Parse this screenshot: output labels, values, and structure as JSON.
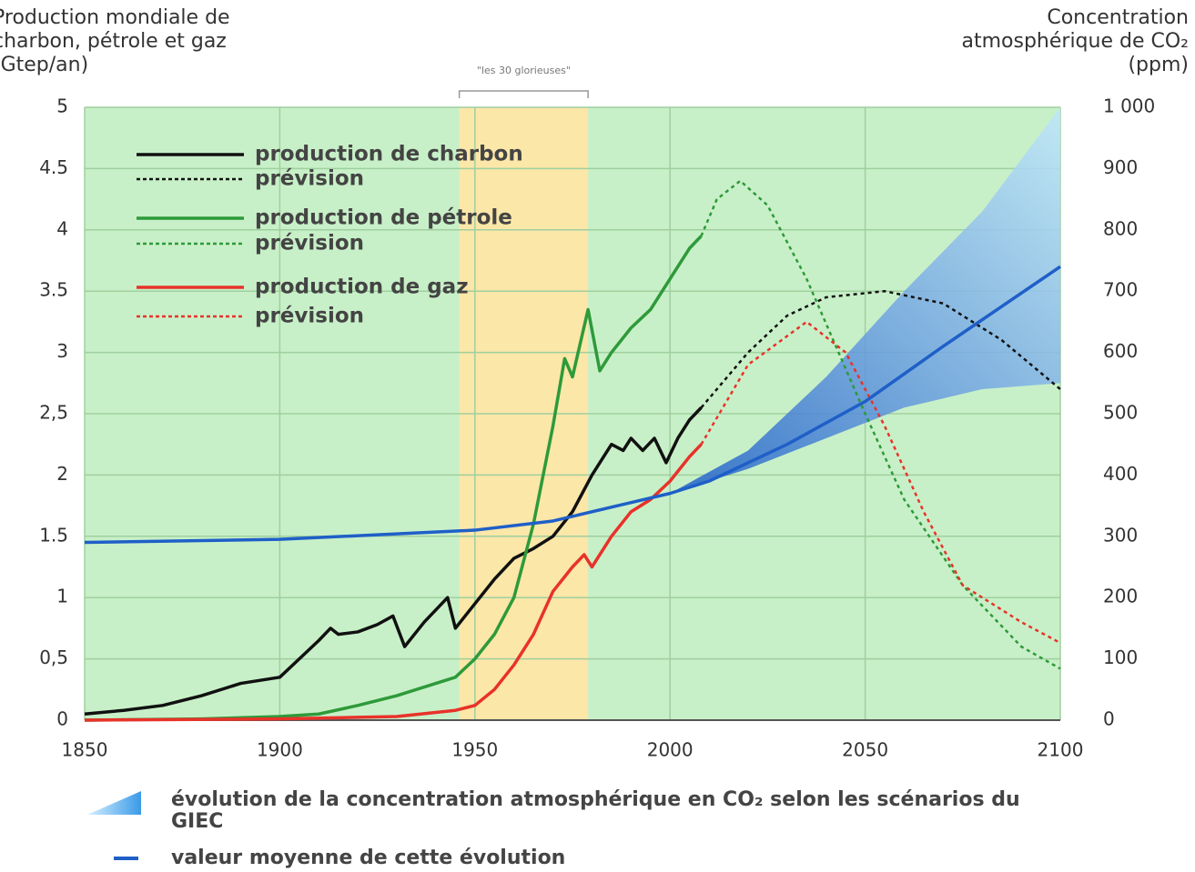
{
  "chart_data": {
    "type": "line",
    "y_label_lines": [
      "Production mondiale de",
      "charbon, pétrole et gaz",
      "(Gtep/an)"
    ],
    "y2_label_lines": [
      "Concentration",
      "atmosphérique de CO₂",
      "(ppm)"
    ],
    "annotation": "\"les 30 glorieuses\"",
    "highlight": [
      1946,
      1979
    ],
    "xlim": [
      1850,
      2100
    ],
    "xticks": [
      1850,
      1900,
      1950,
      2000,
      2050,
      2100
    ],
    "ylim": [
      0,
      5
    ],
    "yticks": [
      0,
      {
        "value": 0.5,
        "label": "0,5"
      },
      1,
      1.5,
      2,
      {
        "value": 2.5,
        "label": "2,5"
      },
      3,
      3.5,
      4,
      4.5,
      5
    ],
    "y2lim": [
      0,
      1000
    ],
    "y2ticks": [
      0,
      100,
      200,
      300,
      400,
      500,
      600,
      700,
      800,
      900,
      {
        "value": 1000,
        "label": "1 000"
      }
    ],
    "grid": true,
    "series": [
      {
        "name": "production de charbon",
        "color": "#111111",
        "dashed": false,
        "x": [
          1850,
          1860,
          1870,
          1880,
          1890,
          1900,
          1905,
          1910,
          1913,
          1915,
          1920,
          1925,
          1929,
          1932,
          1937,
          1940,
          1943,
          1945,
          1950,
          1955,
          1960,
          1965,
          1970,
          1975,
          1980,
          1985,
          1988,
          1990,
          1993,
          1996,
          1999,
          2002,
          2005,
          2008
        ],
        "values": [
          0.05,
          0.08,
          0.12,
          0.2,
          0.3,
          0.35,
          0.5,
          0.65,
          0.75,
          0.7,
          0.72,
          0.78,
          0.85,
          0.6,
          0.8,
          0.9,
          1.0,
          0.75,
          0.95,
          1.15,
          1.32,
          1.4,
          1.5,
          1.7,
          2.0,
          2.25,
          2.2,
          2.3,
          2.2,
          2.3,
          2.1,
          2.3,
          2.45,
          2.55
        ]
      },
      {
        "name": "prévision",
        "color": "#111111",
        "dashed": true,
        "x": [
          2008,
          2020,
          2030,
          2040,
          2055,
          2070,
          2085,
          2100
        ],
        "values": [
          2.55,
          3.0,
          3.3,
          3.45,
          3.5,
          3.4,
          3.1,
          2.7
        ]
      },
      {
        "name": "production de pétrole",
        "color": "#2e9a3a",
        "dashed": false,
        "x": [
          1850,
          1880,
          1900,
          1910,
          1920,
          1930,
          1940,
          1945,
          1950,
          1955,
          1960,
          1965,
          1970,
          1973,
          1975,
          1979,
          1982,
          1985,
          1990,
          1995,
          2000,
          2005,
          2008
        ],
        "values": [
          0,
          0.01,
          0.03,
          0.05,
          0.12,
          0.2,
          0.3,
          0.35,
          0.5,
          0.7,
          1.0,
          1.6,
          2.4,
          2.95,
          2.8,
          3.35,
          2.85,
          3.0,
          3.2,
          3.35,
          3.6,
          3.85,
          3.95
        ]
      },
      {
        "name": "prévision",
        "color": "#2e9a3a",
        "dashed": true,
        "x": [
          2008,
          2012,
          2018,
          2025,
          2035,
          2050,
          2060,
          2075,
          2090,
          2100
        ],
        "values": [
          3.95,
          4.25,
          4.4,
          4.2,
          3.6,
          2.5,
          1.8,
          1.1,
          0.6,
          0.42
        ]
      },
      {
        "name": "production de gaz",
        "color": "#e8322a",
        "dashed": false,
        "x": [
          1850,
          1900,
          1930,
          1945,
          1950,
          1955,
          1960,
          1965,
          1970,
          1975,
          1978,
          1980,
          1985,
          1990,
          1995,
          2000,
          2005,
          2008
        ],
        "values": [
          0,
          0.01,
          0.03,
          0.08,
          0.12,
          0.25,
          0.45,
          0.7,
          1.05,
          1.25,
          1.35,
          1.25,
          1.5,
          1.7,
          1.8,
          1.95,
          2.15,
          2.25
        ]
      },
      {
        "name": "prévision",
        "color": "#e8322a",
        "dashed": true,
        "x": [
          2008,
          2020,
          2035,
          2045,
          2055,
          2065,
          2075,
          2090,
          2100
        ],
        "values": [
          2.25,
          2.9,
          3.25,
          3.0,
          2.4,
          1.7,
          1.1,
          0.8,
          0.63
        ]
      },
      {
        "name": "valeur moyenne de cette évolution",
        "color": "#1f5fc8",
        "axis": "y2",
        "dashed": false,
        "x": [
          1850,
          1900,
          1950,
          1970,
          1990,
          2000,
          2010,
          2030,
          2050,
          2070,
          2100
        ],
        "values": [
          290,
          295,
          310,
          325,
          355,
          370,
          390,
          450,
          520,
          610,
          740
        ]
      }
    ],
    "band": {
      "name": "évolution de la concentration atmosphérique en CO₂ selon les scénarios du GIEC",
      "color": "#4aa8ee",
      "axis": "y2",
      "x": [
        2000,
        2020,
        2040,
        2060,
        2080,
        2100
      ],
      "lower": [
        370,
        410,
        460,
        510,
        540,
        550
      ],
      "upper": [
        370,
        440,
        560,
        700,
        830,
        1000
      ]
    }
  }
}
